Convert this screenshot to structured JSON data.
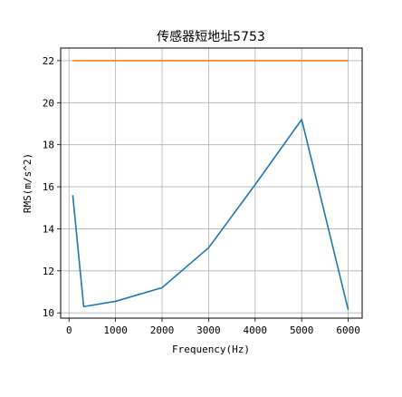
{
  "chart_data": {
    "type": "line",
    "title": "传感器短地址5753",
    "xlabel": "Frequency(Hz)",
    "ylabel": "RMS(m/s^2)",
    "xlim": [
      -180,
      6300
    ],
    "ylim": [
      9.75,
      22.6
    ],
    "xticks": [
      0,
      1000,
      2000,
      3000,
      4000,
      5000,
      6000
    ],
    "yticks": [
      10,
      12,
      14,
      16,
      18,
      20,
      22
    ],
    "grid": true,
    "series": [
      {
        "color": "#1f77b4",
        "x": [
          80,
          315,
          1000,
          2000,
          3000,
          4000,
          5000,
          6000
        ],
        "y": [
          15.6,
          10.3,
          10.55,
          11.2,
          13.1,
          16.1,
          19.2,
          10.15
        ]
      },
      {
        "color": "#ff7f0e",
        "x": [
          80,
          315,
          1000,
          2000,
          3000,
          4000,
          5000,
          6000
        ],
        "y": [
          22,
          22,
          22,
          22,
          22,
          22,
          22,
          22
        ]
      }
    ]
  }
}
